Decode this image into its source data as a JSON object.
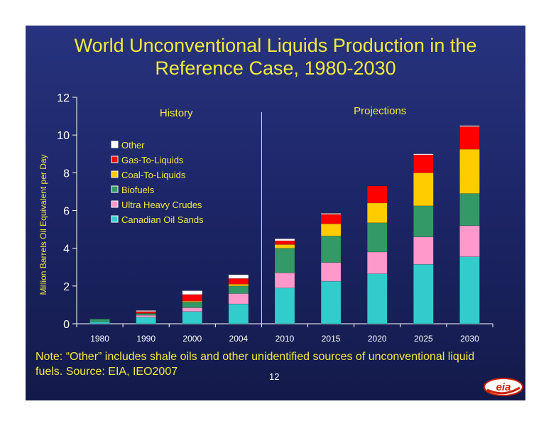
{
  "title_line1": "World Unconventional Liquids Production in the",
  "title_line2": "Reference Case, 1980-2030",
  "note": "Note: “Other” includes shale oils and other unidentified sources of unconventional liquid fuels. Source:  EIA, IEO2007",
  "page_number": "12",
  "logo_text": "eia",
  "chart_data": {
    "type": "bar",
    "stacked": true,
    "categories": [
      "1980",
      "1990",
      "2000",
      "2004",
      "2010",
      "2015",
      "2020",
      "2025",
      "2030"
    ],
    "series": [
      {
        "name": "Canadian Oil Sands",
        "color": "#33cccc",
        "values": [
          0.1,
          0.35,
          0.65,
          1.05,
          1.9,
          2.25,
          2.65,
          3.15,
          3.55
        ]
      },
      {
        "name": "Ultra Heavy Crudes",
        "color": "#ff99cc",
        "values": [
          0.0,
          0.1,
          0.2,
          0.55,
          0.8,
          1.0,
          1.15,
          1.45,
          1.65
        ]
      },
      {
        "name": "Biofuels",
        "color": "#339966",
        "values": [
          0.15,
          0.1,
          0.3,
          0.4,
          1.3,
          1.4,
          1.55,
          1.65,
          1.7
        ]
      },
      {
        "name": "Coal-To-Liquids",
        "color": "#ffcc00",
        "values": [
          0.0,
          0.0,
          0.05,
          0.1,
          0.2,
          0.65,
          1.05,
          1.75,
          2.35
        ]
      },
      {
        "name": "Gas-To-Liquids",
        "color": "#ff0000",
        "values": [
          0.0,
          0.1,
          0.35,
          0.3,
          0.2,
          0.5,
          0.9,
          0.95,
          1.2
        ]
      },
      {
        "name": "Other",
        "color": "#ffffff",
        "values": [
          0.0,
          0.05,
          0.2,
          0.2,
          0.1,
          0.05,
          0.0,
          0.05,
          0.05
        ]
      }
    ],
    "ylabel": "Million Barrels Oil Equivalent per Day",
    "ylim": [
      0,
      12
    ],
    "yticks": [
      0,
      2,
      4,
      6,
      8,
      10,
      12
    ],
    "annotations": [
      "History",
      "Projections"
    ],
    "divider_between": [
      "2004",
      "2010"
    ],
    "legend_position": "upper-left",
    "grid": false
  }
}
